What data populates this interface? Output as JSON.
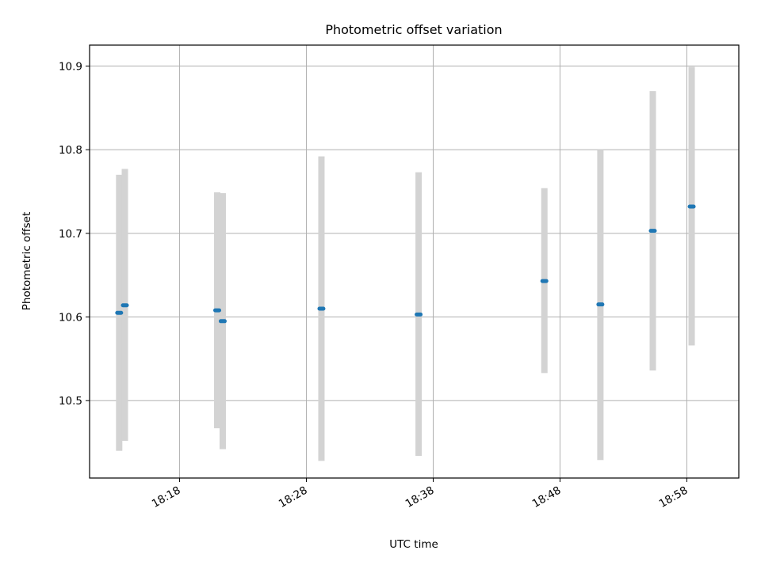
{
  "chart_data": {
    "type": "scatter",
    "title": "Photometric offset variation",
    "xlabel": "UTC time",
    "ylabel": "Photometric offset",
    "x_axis_type": "time",
    "xlim": [
      "18:10:54",
      "19:02:06"
    ],
    "ylim": [
      10.4075,
      10.925
    ],
    "x_ticks": [
      "18:18",
      "18:28",
      "18:38",
      "18:48",
      "18:58"
    ],
    "y_ticks": [
      10.5,
      10.6,
      10.7,
      10.8,
      10.9
    ],
    "y_tick_labels": [
      "10.5",
      "10.6",
      "10.7",
      "10.8",
      "10.9"
    ],
    "grid": true,
    "series": [
      {
        "marker_color": "#1f77b4",
        "errorbar_color": "#d3d3d3",
        "points": [
          {
            "time": "18:13:14",
            "y": 10.605,
            "y_low": 10.44,
            "y_high": 10.77
          },
          {
            "time": "18:13:41",
            "y": 10.614,
            "y_low": 10.452,
            "y_high": 10.777
          },
          {
            "time": "18:20:58",
            "y": 10.608,
            "y_low": 10.467,
            "y_high": 10.749
          },
          {
            "time": "18:21:24",
            "y": 10.595,
            "y_low": 10.442,
            "y_high": 10.748
          },
          {
            "time": "18:29:11",
            "y": 10.61,
            "y_low": 10.428,
            "y_high": 10.792
          },
          {
            "time": "18:36:51",
            "y": 10.603,
            "y_low": 10.434,
            "y_high": 10.773
          },
          {
            "time": "18:46:46",
            "y": 10.643,
            "y_low": 10.533,
            "y_high": 10.754
          },
          {
            "time": "18:51:11",
            "y": 10.615,
            "y_low": 10.429,
            "y_high": 10.8
          },
          {
            "time": "18:55:19",
            "y": 10.703,
            "y_low": 10.536,
            "y_high": 10.87
          },
          {
            "time": "18:58:23",
            "y": 10.732,
            "y_low": 10.566,
            "y_high": 10.899
          }
        ]
      }
    ]
  }
}
